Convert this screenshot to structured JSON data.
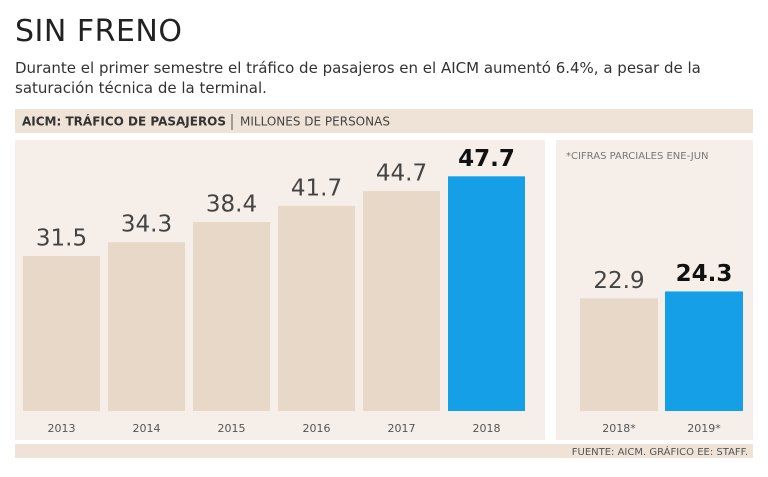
{
  "title": "SIN FRENO",
  "subtitle": "Durante el primer semestre el tráfico de pasajeros en el AICM aumentó 6.4%, a pesar de la saturación técnica de la terminal.",
  "source": "FUENTE: AICM. GRÁFICO EE: STAFF.",
  "chart_data": [
    {
      "type": "bar",
      "title": "AICM: TRÁFICO DE PASAJEROS",
      "units": "MILLONES DE PERSONAS",
      "categories": [
        "2013",
        "2014",
        "2015",
        "2016",
        "2017",
        "2018"
      ],
      "values": [
        31.5,
        34.3,
        38.4,
        41.7,
        44.7,
        47.7
      ],
      "colors": [
        "#e8d8c8",
        "#e8d8c8",
        "#e8d8c8",
        "#e8d8c8",
        "#e8d8c8",
        "#159fe6"
      ],
      "ylim": [
        0,
        50
      ]
    },
    {
      "type": "bar",
      "note": "*CIFRAS PARCIALES ENE-JUN",
      "categories": [
        "2018*",
        "2019*"
      ],
      "values": [
        22.9,
        24.3
      ],
      "colors": [
        "#e8d8c8",
        "#159fe6"
      ],
      "ylim": [
        0,
        50
      ]
    }
  ]
}
